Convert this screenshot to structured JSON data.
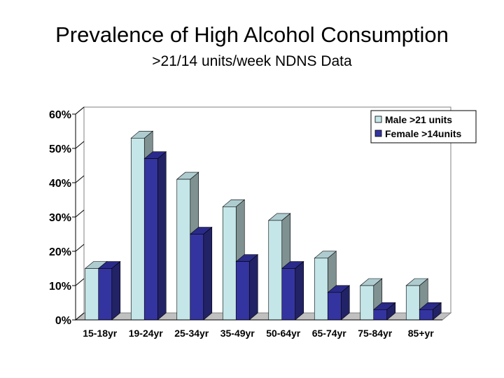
{
  "chart_data": {
    "type": "bar",
    "title": "Prevalence of High Alcohol Consumption",
    "subtitle": ">21/14 units/week NDNS Data",
    "categories": [
      "15-18yr",
      "19-24yr",
      "25-34yr",
      "35-49yr",
      "50-64yr",
      "65-74yr",
      "75-84yr",
      "85+yr"
    ],
    "series": [
      {
        "name": "Male >21 units",
        "values": [
          15,
          53,
          41,
          33,
          29,
          18,
          10,
          10
        ],
        "color": "#c5e6e8"
      },
      {
        "name": "Female >14units",
        "values": [
          15,
          47,
          25,
          17,
          15,
          8,
          3,
          3
        ],
        "color": "#3434a0"
      }
    ],
    "ylim": [
      0,
      60
    ],
    "yticks": [
      "0%",
      "10%",
      "20%",
      "30%",
      "40%",
      "50%",
      "60%"
    ],
    "grid": false,
    "legend": "top-right",
    "bar_style": "3d"
  }
}
